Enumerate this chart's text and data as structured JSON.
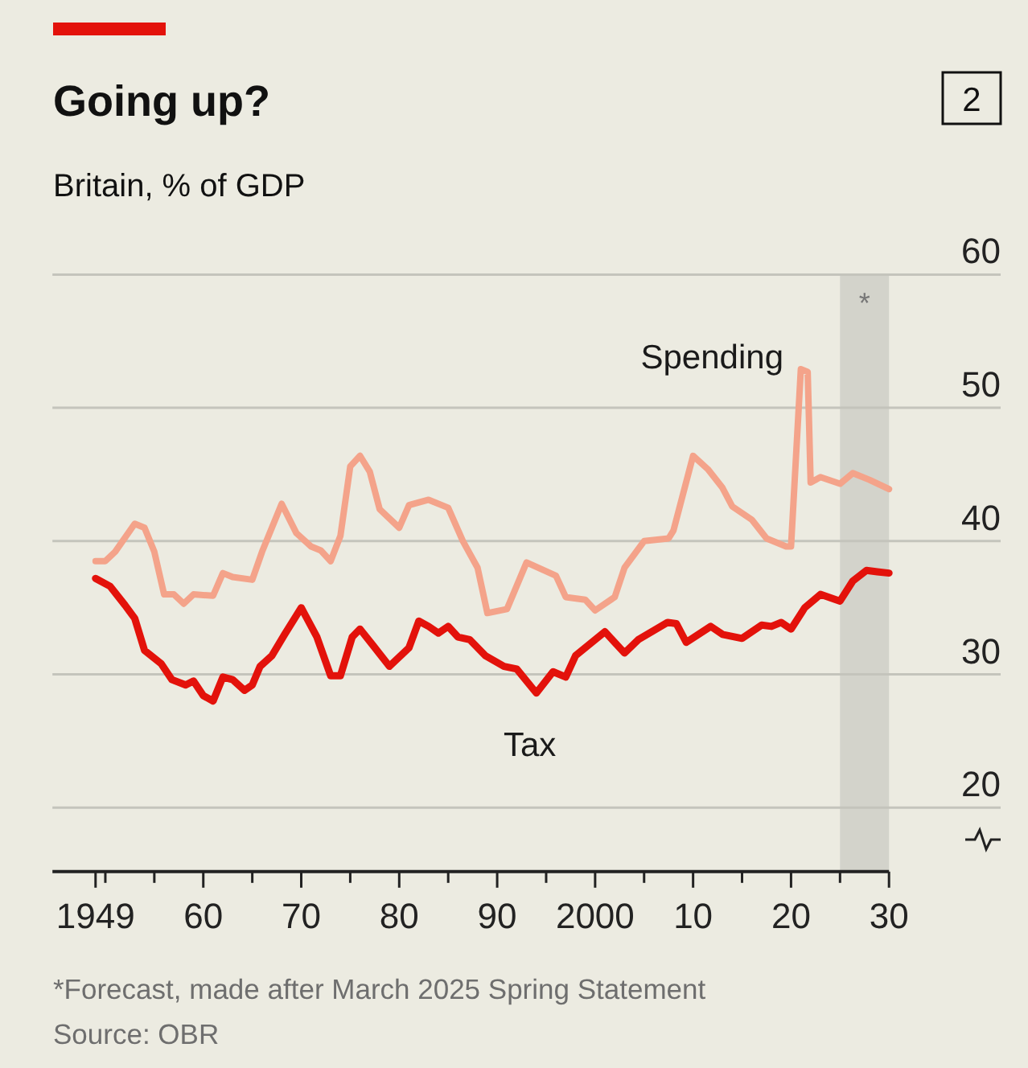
{
  "chart_data": {
    "type": "line",
    "title": "Going up?",
    "subtitle": "Britain, % of GDP",
    "annotations": [
      "2",
      "*Forecast, made after March 2025 Spring Statement",
      "Source: OBR"
    ],
    "xlim": [
      1944.6,
      2030
    ],
    "xticks": [
      {
        "value": 1949,
        "label": "1949"
      },
      {
        "value": 1950,
        "label": null
      },
      {
        "value": 1955,
        "label": null
      },
      {
        "value": 1960,
        "label": "60"
      },
      {
        "value": 1965,
        "label": null
      },
      {
        "value": 1970,
        "label": "70"
      },
      {
        "value": 1975,
        "label": null
      },
      {
        "value": 1980,
        "label": "80"
      },
      {
        "value": 1985,
        "label": null
      },
      {
        "value": 1990,
        "label": "90"
      },
      {
        "value": 1995,
        "label": null
      },
      {
        "value": 2000,
        "label": "2000"
      },
      {
        "value": 2005,
        "label": null
      },
      {
        "value": 2010,
        "label": "10"
      },
      {
        "value": 2015,
        "label": null
      },
      {
        "value": 2020,
        "label": "20"
      },
      {
        "value": 2025,
        "label": null
      },
      {
        "value": 2030,
        "label": "30"
      }
    ],
    "ylim": [
      15.2,
      60
    ],
    "yticks": [
      20,
      30,
      40,
      50,
      60
    ],
    "grid": "y",
    "bands": [
      {
        "axis": "x",
        "from": 2025,
        "to": 2030,
        "label": "*",
        "color": "#d3d3cb"
      }
    ],
    "series": [
      {
        "name": "Spending",
        "color": "#f4a38a",
        "x": [
          1949,
          1950,
          1951,
          1953,
          1954,
          1955,
          1956,
          1957,
          1958,
          1959,
          1961,
          1962,
          1963,
          1965,
          1966,
          1968,
          1969.5,
          1971,
          1972,
          1973,
          1974,
          1975,
          1976,
          1977,
          1978,
          1980,
          1981,
          1983,
          1985,
          1986.5,
          1988,
          1989,
          1991,
          1993,
          1996,
          1997,
          1999,
          2000,
          2002,
          2003,
          2005,
          2007.5,
          2008,
          2010,
          2011.5,
          2013,
          2014,
          2016,
          2017.5,
          2019.5,
          2020,
          2021,
          2021.7,
          2022,
          2023,
          2025,
          2026.3,
          2028,
          2030
        ],
        "values": [
          38.5,
          38.5,
          39.2,
          41.3,
          41.0,
          39.2,
          36.0,
          36.0,
          35.3,
          36.0,
          35.9,
          37.6,
          37.3,
          37.1,
          39.2,
          42.8,
          40.6,
          39.6,
          39.3,
          38.5,
          40.4,
          45.6,
          46.4,
          45.2,
          42.4,
          41.0,
          42.7,
          43.1,
          42.5,
          40.0,
          38.0,
          34.6,
          34.9,
          38.4,
          37.4,
          35.8,
          35.6,
          34.8,
          35.8,
          38.0,
          40.0,
          40.2,
          40.8,
          46.4,
          45.4,
          44.0,
          42.6,
          41.6,
          40.2,
          39.6,
          39.6,
          52.9,
          52.7,
          44.4,
          44.8,
          44.3,
          45.1,
          44.6,
          43.9
        ]
      },
      {
        "name": "Tax",
        "color": "#e3120b",
        "x": [
          1949,
          1950.5,
          1952,
          1953,
          1954,
          1955.7,
          1956.8,
          1958.2,
          1959,
          1960,
          1961,
          1962,
          1963,
          1964.2,
          1965,
          1965.8,
          1967,
          1968.3,
          1970,
          1971.6,
          1973,
          1974,
          1975.2,
          1976,
          1977.3,
          1979,
          1981,
          1982,
          1983,
          1984,
          1985,
          1986,
          1987.2,
          1988.8,
          1990.7,
          1992,
          1994,
          1995.7,
          1997,
          1998,
          2001,
          2003,
          2004.4,
          2007.4,
          2008.3,
          2009.3,
          2011.8,
          2013,
          2015,
          2017,
          2018,
          2019,
          2020,
          2021.4,
          2023,
          2025,
          2026.3,
          2027.7,
          2028.8,
          2030
        ],
        "values": [
          37.2,
          36.6,
          35.2,
          34.2,
          31.8,
          30.8,
          29.6,
          29.2,
          29.5,
          28.4,
          28.0,
          29.8,
          29.6,
          28.8,
          29.2,
          30.6,
          31.4,
          33.0,
          35.0,
          32.8,
          29.9,
          29.9,
          32.8,
          33.4,
          32.2,
          30.6,
          32.0,
          34.0,
          33.6,
          33.1,
          33.6,
          32.8,
          32.6,
          31.4,
          30.6,
          30.4,
          28.6,
          30.2,
          29.8,
          31.4,
          33.2,
          31.6,
          32.6,
          33.9,
          33.8,
          32.4,
          33.6,
          33.0,
          32.7,
          33.7,
          33.6,
          33.9,
          33.4,
          35.0,
          36.0,
          35.5,
          37.0,
          37.8,
          37.7,
          37.6
        ]
      }
    ]
  }
}
